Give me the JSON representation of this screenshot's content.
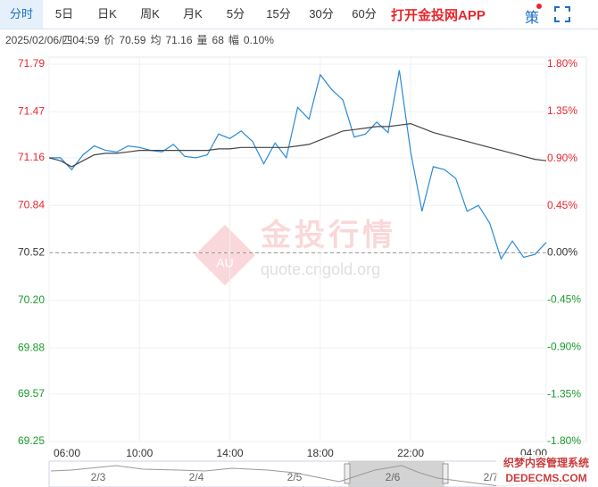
{
  "tabs": [
    "分时",
    "5日",
    "日K",
    "周K",
    "月K",
    "5分",
    "15分",
    "30分",
    "60分"
  ],
  "app_link": "打开金投网APP",
  "strategy": "策",
  "info": {
    "datetime": "2025/02/06/四04:59",
    "price_label": "价",
    "price": "70.59",
    "avg_label": "均",
    "avg": "71.16",
    "volume_label": "量",
    "volume": "68",
    "change_label": "幅",
    "change": "0.10%"
  },
  "watermark": {
    "icon": "AU",
    "title": "金投行情",
    "url": "quote.cngold.org"
  },
  "navigator": {
    "labels": [
      "2/3",
      "2/4",
      "2/5",
      "2/6",
      "2/7"
    ]
  },
  "footer_watermark": {
    "line1": "织梦内容管理系统",
    "line2": "DEDECMS.COM"
  },
  "chart_data": {
    "type": "line",
    "x": [
      "06:00",
      "06:30",
      "07:00",
      "07:30",
      "08:00",
      "08:30",
      "09:00",
      "09:30",
      "10:00",
      "10:30",
      "11:00",
      "11:30",
      "12:00",
      "12:30",
      "13:00",
      "13:30",
      "14:00",
      "14:30",
      "15:00",
      "15:30",
      "16:00",
      "16:30",
      "17:00",
      "17:30",
      "18:00",
      "18:30",
      "19:00",
      "19:30",
      "20:00",
      "20:30",
      "21:00",
      "21:30",
      "22:00",
      "22:30",
      "23:00",
      "23:30",
      "00:00",
      "00:30",
      "01:00",
      "01:30",
      "02:00",
      "02:30",
      "03:00",
      "03:30",
      "04:00"
    ],
    "series": [
      {
        "color": "#2a8ad6",
        "values": [
          71.16,
          71.16,
          71.08,
          71.18,
          71.24,
          71.21,
          71.2,
          71.24,
          71.23,
          71.21,
          71.2,
          71.25,
          71.17,
          71.16,
          71.18,
          71.32,
          71.29,
          71.34,
          71.27,
          71.12,
          71.26,
          71.16,
          71.5,
          71.42,
          71.72,
          71.62,
          71.55,
          71.3,
          71.32,
          71.4,
          71.33,
          71.75,
          71.2,
          70.8,
          71.1,
          71.08,
          71.02,
          70.8,
          70.84,
          70.72,
          70.48,
          70.6,
          70.49,
          70.51,
          70.59
        ]
      },
      {
        "color": "#444444",
        "values": [
          71.16,
          71.14,
          71.1,
          71.14,
          71.18,
          71.19,
          71.19,
          71.2,
          71.21,
          71.21,
          71.21,
          71.21,
          71.21,
          71.21,
          71.21,
          71.22,
          71.22,
          71.23,
          71.23,
          71.23,
          71.23,
          71.23,
          71.24,
          71.25,
          71.28,
          71.31,
          71.34,
          71.35,
          71.36,
          71.37,
          71.37,
          71.38,
          71.39,
          71.36,
          71.33,
          71.31,
          71.29,
          71.27,
          71.25,
          71.23,
          71.21,
          71.19,
          71.17,
          71.15,
          71.14
        ]
      }
    ],
    "xticks": [
      "06:00",
      "10:00",
      "14:00",
      "18:00",
      "22:00",
      "04:00"
    ],
    "ylim": [
      69.25,
      71.79
    ],
    "yticks": [
      71.79,
      71.47,
      71.16,
      70.84,
      70.52,
      {
        "value": 70.2,
        "label": "70.20"
      },
      69.88,
      69.57,
      69.25
    ],
    "y2lim": [
      -1.8,
      1.8
    ],
    "y2ticks": [
      {
        "value": 1.8,
        "label": "1.80%"
      },
      {
        "value": 1.35,
        "label": "1.35%"
      },
      {
        "value": 0.9,
        "label": "0.90%"
      },
      {
        "value": 0.45,
        "label": "0.45%"
      },
      {
        "value": 0,
        "label": "0.00%"
      },
      {
        "value": -0.45,
        "label": "-0.45%"
      },
      {
        "value": -0.9,
        "label": "-0.90%"
      },
      {
        "value": -1.35,
        "label": "-1.35%"
      },
      {
        "value": -1.8,
        "label": "-1.80%"
      }
    ],
    "reference_line": 70.52,
    "up_color": "#e8262d",
    "down_color": "#1a9a2a",
    "neutral_color": "#333333",
    "grid": true
  }
}
